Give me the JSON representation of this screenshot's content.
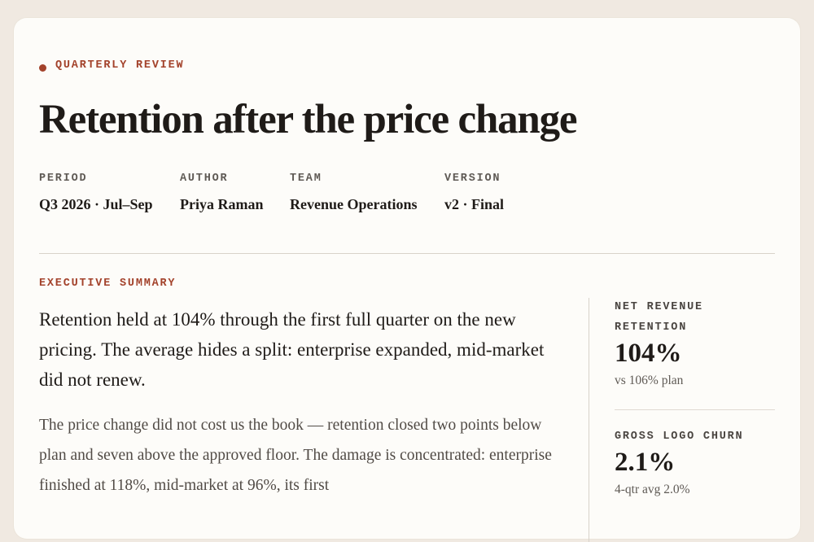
{
  "header": {
    "eyebrow": "QUARTERLY REVIEW",
    "title": "Retention after the price change",
    "meta": [
      {
        "label": "PERIOD",
        "value": "Q3 2026 · Jul–Sep"
      },
      {
        "label": "AUTHOR",
        "value": "Priya Raman"
      },
      {
        "label": "TEAM",
        "value": "Revenue Operations"
      },
      {
        "label": "VERSION",
        "value": "v2 · Final"
      }
    ]
  },
  "summary": {
    "label": "EXECUTIVE SUMMARY",
    "lead": "Retention held at 104% through the first full quarter on the new pricing. The average hides a split: enterprise expanded, mid-market did not renew.",
    "body": "The price change did not cost us the book — retention closed two points below plan and seven above the approved floor. The damage is concentrated: enterprise finished at 118%, mid-market at 96%, its first"
  },
  "metrics": [
    {
      "label": "NET REVENUE RETENTION",
      "value": "104%",
      "note": "vs 106% plan"
    },
    {
      "label": "GROSS LOGO CHURN",
      "value": "2.1%",
      "note": "4-qtr avg 2.0%"
    }
  ]
}
